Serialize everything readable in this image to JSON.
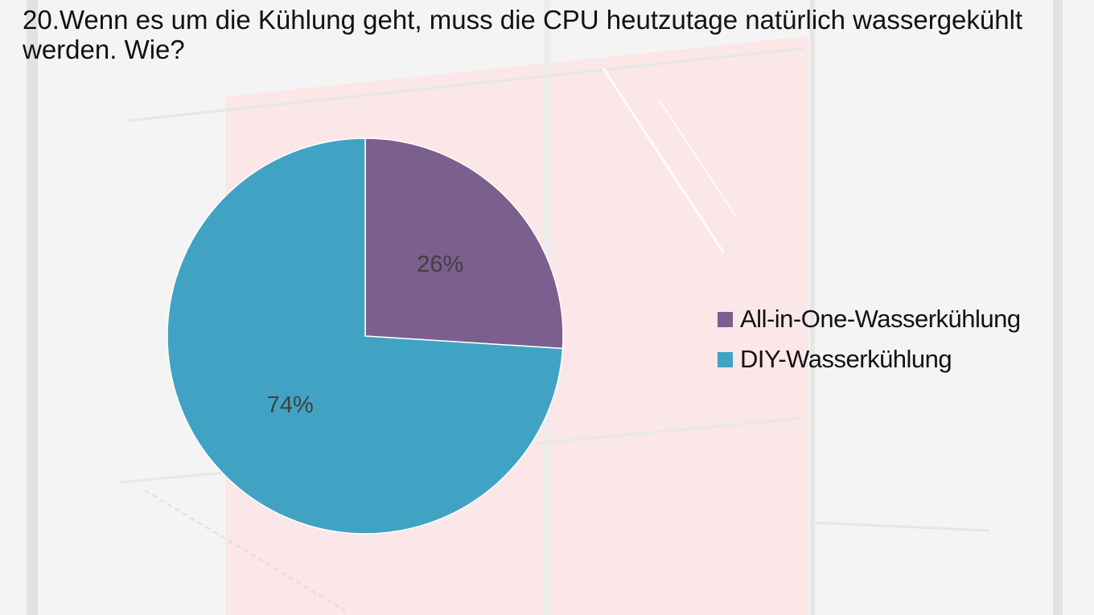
{
  "slide": {
    "title": "20.Wenn es um die Kühlung geht, muss die CPU heutzutage natürlich wassergekühlt werden. Wie?"
  },
  "chart_data": {
    "type": "pie",
    "title": "20.Wenn es um die Kühlung geht, muss die CPU heutzutage natürlich wassergekühlt werden. Wie?",
    "categories": [
      "All-in-One-Wasserkühlung",
      "DIY-Wasserkühlung"
    ],
    "values": [
      26,
      74
    ],
    "labels": [
      "26%",
      "74%"
    ],
    "colors": [
      "#7b5f8e",
      "#41a3c3"
    ],
    "start_angle_deg": 0,
    "direction": "clockwise",
    "legend_position": "right"
  }
}
